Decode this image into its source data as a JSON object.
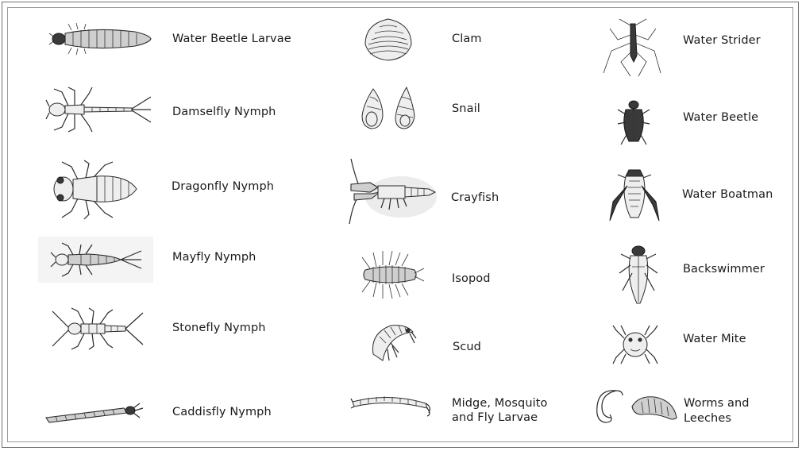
{
  "organisms": {
    "col1": [
      {
        "label": "Water Beetle Larvae",
        "icon": "water-beetle-larvae-icon"
      },
      {
        "label": "Damselfly Nymph",
        "icon": "damselfly-nymph-icon"
      },
      {
        "label": "Dragonfly Nymph",
        "icon": "dragonfly-nymph-icon"
      },
      {
        "label": "Mayfly Nymph",
        "icon": "mayfly-nymph-icon"
      },
      {
        "label": "Stonefly Nymph",
        "icon": "stonefly-nymph-icon"
      },
      {
        "label": "Caddisfly Nymph",
        "icon": "caddisfly-nymph-icon"
      }
    ],
    "col2": [
      {
        "label": "Clam",
        "icon": "clam-icon"
      },
      {
        "label": "Snail",
        "icon": "snail-icon"
      },
      {
        "label": "Crayfish",
        "icon": "crayfish-icon"
      },
      {
        "label": "Isopod",
        "icon": "isopod-icon"
      },
      {
        "label": "Scud",
        "icon": "scud-icon"
      },
      {
        "label": "Midge, Mosquito",
        "label2": "and Fly Larvae",
        "icon": "midge-larvae-icon"
      }
    ],
    "col3": [
      {
        "label": "Water Strider",
        "icon": "water-strider-icon"
      },
      {
        "label": "Water Beetle",
        "icon": "water-beetle-icon"
      },
      {
        "label": "Water Boatman",
        "icon": "water-boatman-icon"
      },
      {
        "label": "Backswimmer",
        "icon": "backswimmer-icon"
      },
      {
        "label": "Water Mite",
        "icon": "water-mite-icon"
      },
      {
        "label": "Worms and",
        "label2": "Leeches",
        "icon": "worms-leeches-icon"
      }
    ]
  }
}
